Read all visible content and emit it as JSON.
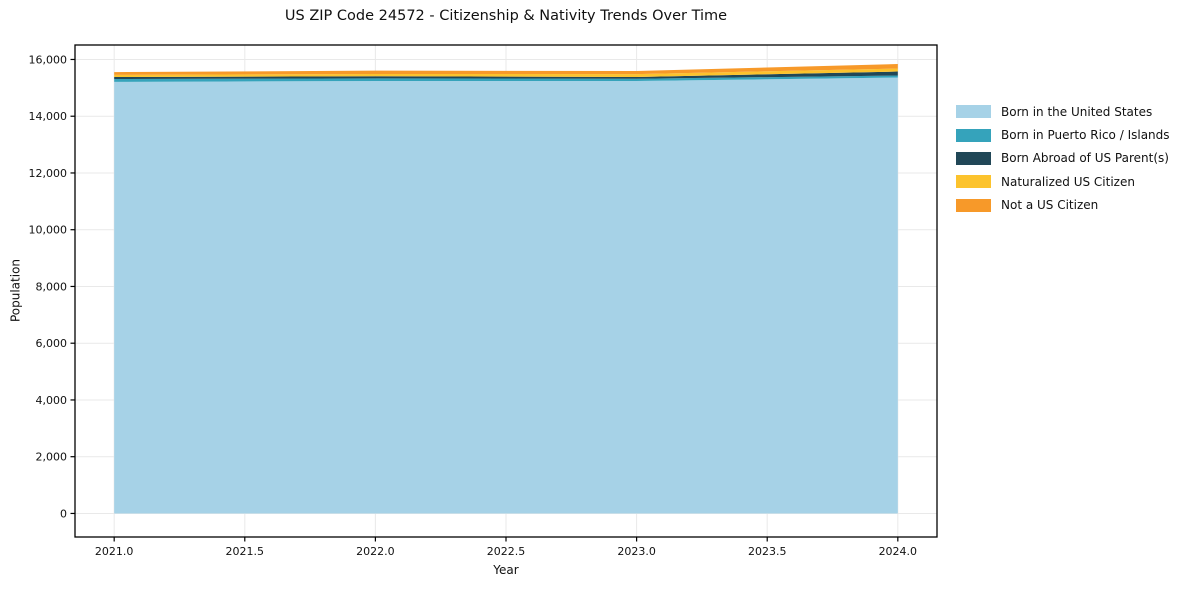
{
  "title": "US ZIP Code 24572 - Citizenship & Nativity Trends Over Time",
  "chart_data": {
    "type": "area",
    "stacked": true,
    "title": "US ZIP Code 24572 - Citizenship & Nativity Trends Over Time",
    "xlabel": "Year",
    "ylabel": "Population",
    "x": [
      2021,
      2022,
      2023,
      2024
    ],
    "series": [
      {
        "name": "Born in the United States",
        "color": "#a6d2e7",
        "values": [
          15210,
          15240,
          15240,
          15365
        ]
      },
      {
        "name": "Born in Puerto Rico / Islands",
        "color": "#35a3bb",
        "values": [
          100,
          95,
          80,
          70
        ]
      },
      {
        "name": "Born Abroad of US Parent(s)",
        "color": "#214757",
        "values": [
          70,
          75,
          60,
          140
        ]
      },
      {
        "name": "Naturalized US Citizen",
        "color": "#fcc32d",
        "values": [
          75,
          80,
          105,
          105
        ]
      },
      {
        "name": "Not a US Citizen",
        "color": "#f79929",
        "values": [
          100,
          115,
          110,
          160
        ]
      }
    ],
    "x_ticks": [
      2021.0,
      2021.5,
      2022.0,
      2022.5,
      2023.0,
      2023.5,
      2024.0
    ],
    "y_ticks": [
      0,
      2000,
      4000,
      6000,
      8000,
      10000,
      12000,
      14000,
      16000
    ],
    "xlim": [
      2020.85,
      2024.15
    ],
    "ylim": [
      -830,
      16510
    ],
    "grid": true,
    "legend_position": "right",
    "grid_color": "#e9e9e9",
    "frame_color": "#000000",
    "text_color": "#111111"
  }
}
